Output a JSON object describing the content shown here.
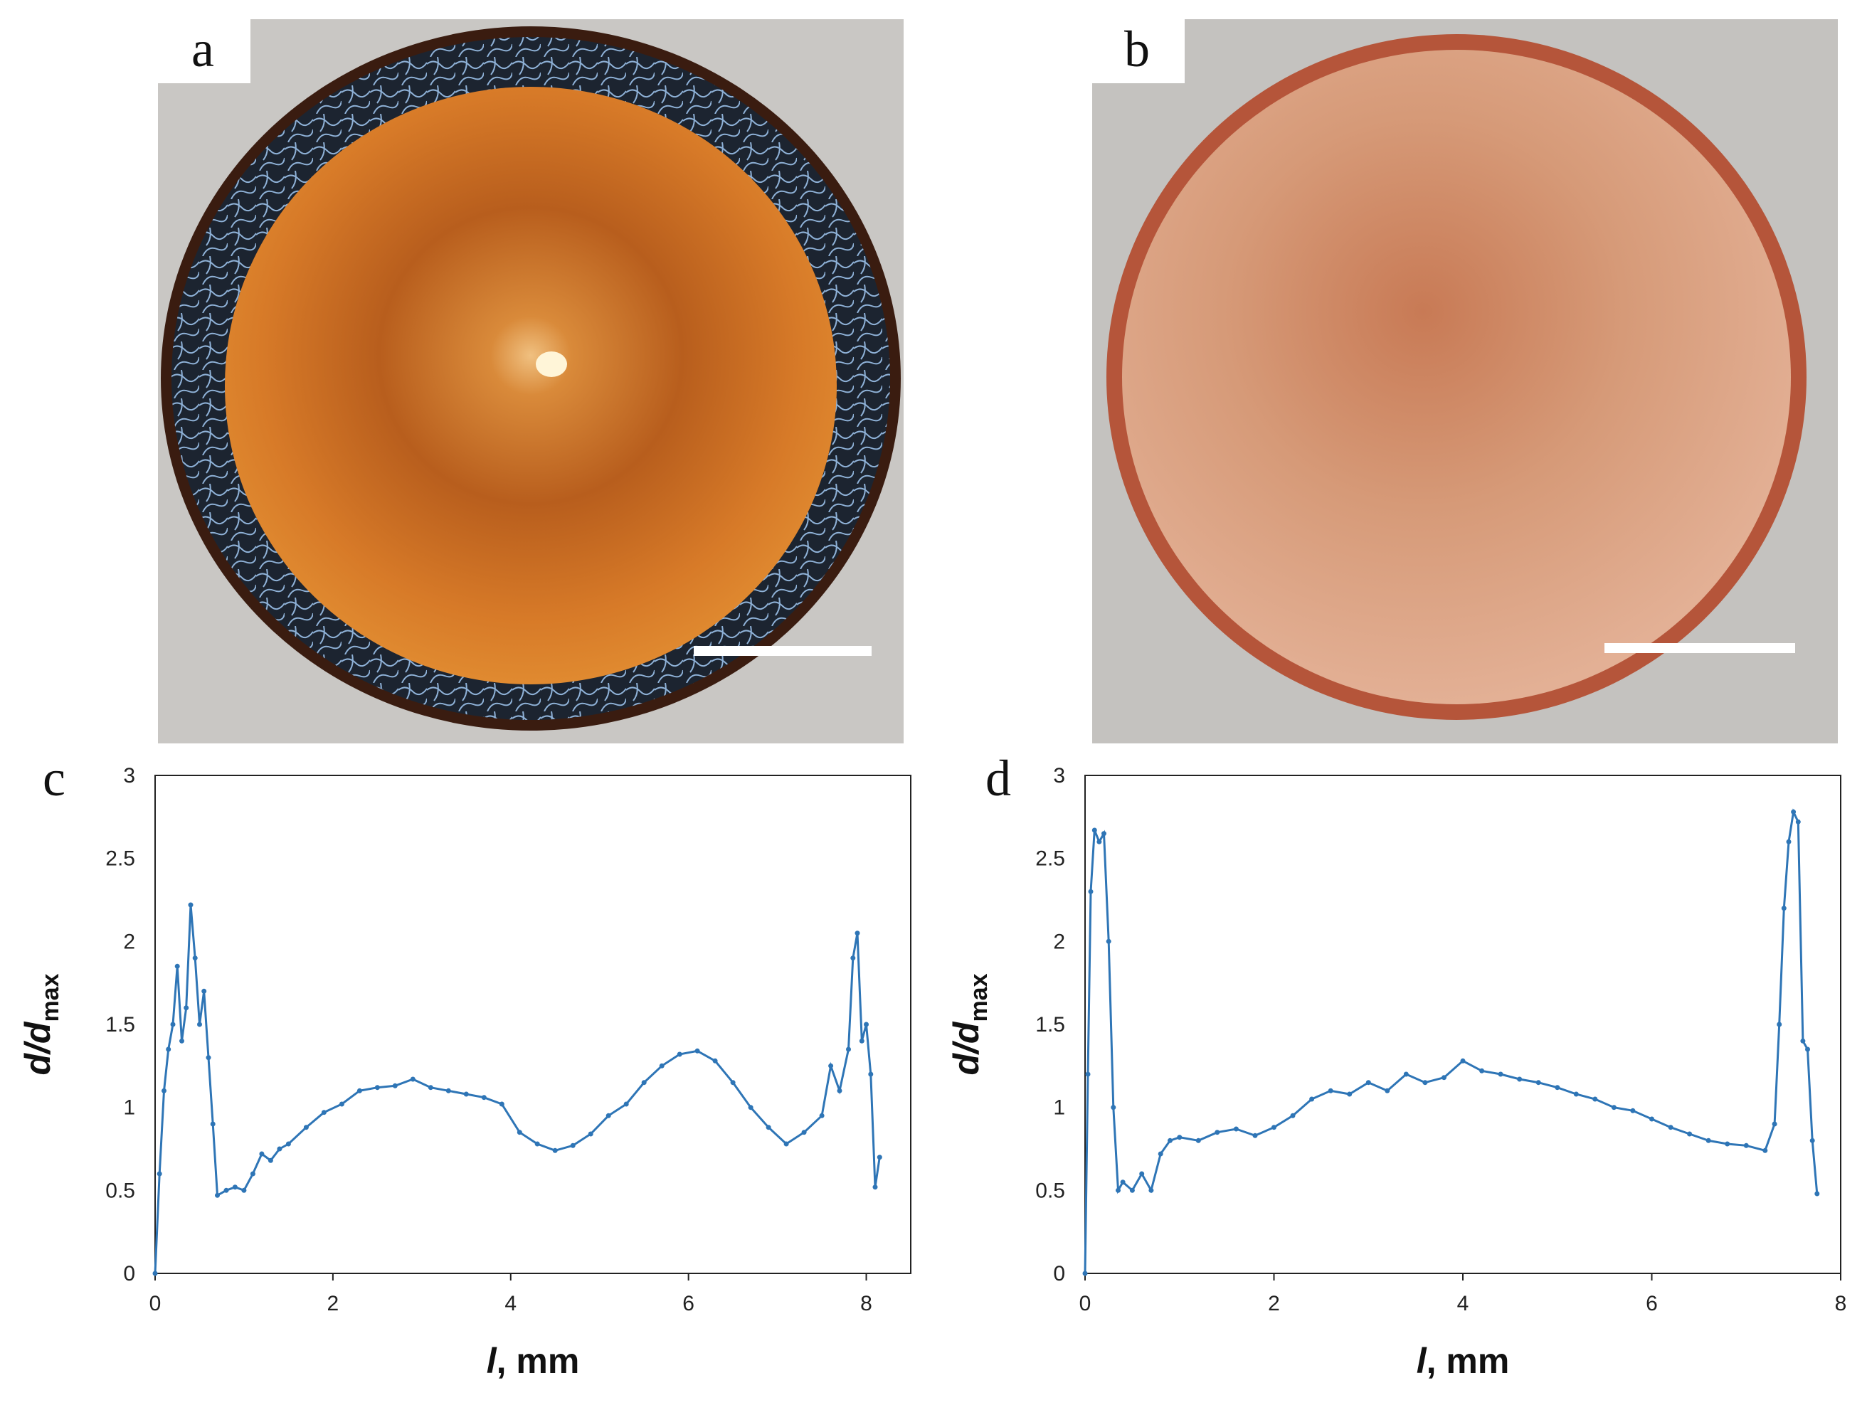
{
  "figure": {
    "panels": [
      {
        "id": "a",
        "letter": "a",
        "type": "photo",
        "description_name": "sample-a-dried-deposit",
        "scale_bar": true
      },
      {
        "id": "b",
        "letter": "b",
        "type": "photo",
        "description_name": "sample-b-dried-deposit",
        "scale_bar": true
      }
    ]
  },
  "chart_data": [
    {
      "id": "c",
      "letter": "c",
      "type": "line",
      "title": "",
      "xlabel": "l, mm",
      "xlabel_italic": "l",
      "xlabel_rest": ", mm",
      "ylabel": "d/dmax",
      "ylabel_main": "d/d",
      "ylabel_sub": "max",
      "xlim": [
        0,
        8.5
      ],
      "ylim": [
        0,
        3
      ],
      "xticks": [
        "0",
        "2",
        "4",
        "6",
        "8"
      ],
      "xtick_values": [
        0,
        2,
        4,
        6,
        8
      ],
      "yticks": [
        "0",
        "0.5",
        "1",
        "1.5",
        "2",
        "2.5",
        "3"
      ],
      "ytick_values": [
        0,
        0.5,
        1,
        1.5,
        2,
        2.5,
        3
      ],
      "color": "#2e75b6",
      "series": [
        {
          "name": "profile",
          "x": [
            0,
            0.05,
            0.1,
            0.15,
            0.2,
            0.25,
            0.3,
            0.35,
            0.4,
            0.45,
            0.5,
            0.55,
            0.6,
            0.65,
            0.7,
            0.8,
            0.9,
            1.0,
            1.1,
            1.2,
            1.3,
            1.4,
            1.5,
            1.7,
            1.9,
            2.1,
            2.3,
            2.5,
            2.7,
            2.9,
            3.1,
            3.3,
            3.5,
            3.7,
            3.9,
            4.1,
            4.3,
            4.5,
            4.7,
            4.9,
            5.1,
            5.3,
            5.5,
            5.7,
            5.9,
            6.1,
            6.3,
            6.5,
            6.7,
            6.9,
            7.1,
            7.3,
            7.5,
            7.6,
            7.7,
            7.8,
            7.85,
            7.9,
            7.95,
            8.0,
            8.05,
            8.1,
            8.15
          ],
          "y": [
            0.0,
            0.6,
            1.1,
            1.35,
            1.5,
            1.85,
            1.4,
            1.6,
            2.22,
            1.9,
            1.5,
            1.7,
            1.3,
            0.9,
            0.47,
            0.5,
            0.52,
            0.5,
            0.6,
            0.72,
            0.68,
            0.75,
            0.78,
            0.88,
            0.97,
            1.02,
            1.1,
            1.12,
            1.13,
            1.17,
            1.12,
            1.1,
            1.08,
            1.06,
            1.02,
            0.85,
            0.78,
            0.74,
            0.77,
            0.84,
            0.95,
            1.02,
            1.15,
            1.25,
            1.32,
            1.34,
            1.28,
            1.15,
            1.0,
            0.88,
            0.78,
            0.85,
            0.95,
            1.25,
            1.1,
            1.35,
            1.9,
            2.05,
            1.4,
            1.5,
            1.2,
            0.52,
            0.7
          ]
        }
      ]
    },
    {
      "id": "d",
      "letter": "d",
      "type": "line",
      "title": "",
      "xlabel": "l, mm",
      "xlabel_italic": "l",
      "xlabel_rest": ", mm",
      "ylabel": "d/dmax",
      "ylabel_main": "d/d",
      "ylabel_sub": "max",
      "xlim": [
        0,
        8
      ],
      "ylim": [
        0,
        3
      ],
      "xticks": [
        "0",
        "2",
        "4",
        "6",
        "8"
      ],
      "xtick_values": [
        0,
        2,
        4,
        6,
        8
      ],
      "yticks": [
        "0",
        "0.5",
        "1",
        "1.5",
        "2",
        "2.5",
        "3"
      ],
      "ytick_values": [
        0,
        0.5,
        1,
        1.5,
        2,
        2.5,
        3
      ],
      "color": "#2e75b6",
      "series": [
        {
          "name": "profile",
          "x": [
            0,
            0.03,
            0.06,
            0.1,
            0.15,
            0.2,
            0.25,
            0.3,
            0.35,
            0.4,
            0.5,
            0.6,
            0.7,
            0.8,
            0.9,
            1.0,
            1.2,
            1.4,
            1.6,
            1.8,
            2.0,
            2.2,
            2.4,
            2.6,
            2.8,
            3.0,
            3.2,
            3.4,
            3.6,
            3.8,
            4.0,
            4.2,
            4.4,
            4.6,
            4.8,
            5.0,
            5.2,
            5.4,
            5.6,
            5.8,
            6.0,
            6.2,
            6.4,
            6.6,
            6.8,
            7.0,
            7.2,
            7.3,
            7.35,
            7.4,
            7.45,
            7.5,
            7.55,
            7.6,
            7.65,
            7.7,
            7.75
          ],
          "y": [
            0.0,
            1.2,
            2.3,
            2.67,
            2.6,
            2.65,
            2.0,
            1.0,
            0.5,
            0.55,
            0.5,
            0.6,
            0.5,
            0.72,
            0.8,
            0.82,
            0.8,
            0.85,
            0.87,
            0.83,
            0.88,
            0.95,
            1.05,
            1.1,
            1.08,
            1.15,
            1.1,
            1.2,
            1.15,
            1.18,
            1.28,
            1.22,
            1.2,
            1.17,
            1.15,
            1.12,
            1.08,
            1.05,
            1.0,
            0.98,
            0.93,
            0.88,
            0.84,
            0.8,
            0.78,
            0.77,
            0.74,
            0.9,
            1.5,
            2.2,
            2.6,
            2.78,
            2.72,
            1.4,
            1.35,
            0.8,
            0.48
          ]
        }
      ]
    }
  ]
}
